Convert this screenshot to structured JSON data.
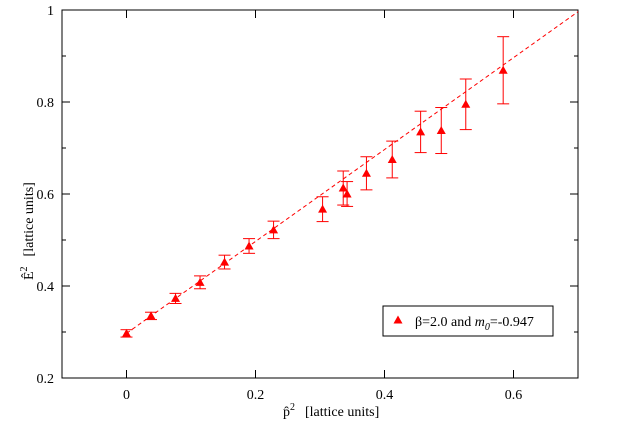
{
  "chart_data": {
    "type": "scatter",
    "xlim": [
      -0.1,
      0.7
    ],
    "ylim": [
      0.2,
      1.0
    ],
    "xticks": [
      0,
      0.2,
      0.4,
      0.6
    ],
    "yticks": [
      0.2,
      0.4,
      0.6,
      0.8,
      1.0
    ],
    "xtick_labels": [
      "0",
      "0.2",
      "0.4",
      "0.6"
    ],
    "ytick_labels": [
      "0.2",
      "0.4",
      "0.6",
      "0.8",
      "1"
    ],
    "xlabel_symbol": "p̂",
    "xlabel_sup": "2",
    "xlabel_units": "[lattice units]",
    "ylabel_symbol": "Ê",
    "ylabel_sup": "2",
    "ylabel_units": "[lattice units]",
    "grid": false,
    "legend_position": "bottom-right",
    "series": [
      {
        "name": "β=2.0 and m0=-0.947",
        "name_parts": {
          "pre": "β=2.0 and ",
          "var": "m",
          "sub": "0",
          "post": "=-0.947"
        },
        "color": "#ff0000",
        "marker": "triangle",
        "points": [
          {
            "x": 0.0,
            "y": 0.297,
            "err": 0.008
          },
          {
            "x": 0.038,
            "y": 0.335,
            "err": 0.008
          },
          {
            "x": 0.076,
            "y": 0.373,
            "err": 0.011
          },
          {
            "x": 0.114,
            "y": 0.408,
            "err": 0.014
          },
          {
            "x": 0.152,
            "y": 0.452,
            "err": 0.015
          },
          {
            "x": 0.19,
            "y": 0.487,
            "err": 0.016
          },
          {
            "x": 0.228,
            "y": 0.522,
            "err": 0.019
          },
          {
            "x": 0.304,
            "y": 0.567,
            "err": 0.027
          },
          {
            "x": 0.336,
            "y": 0.613,
            "err": 0.037
          },
          {
            "x": 0.342,
            "y": 0.6,
            "err": 0.027
          },
          {
            "x": 0.372,
            "y": 0.645,
            "err": 0.036
          },
          {
            "x": 0.412,
            "y": 0.675,
            "err": 0.04
          },
          {
            "x": 0.456,
            "y": 0.735,
            "err": 0.045
          },
          {
            "x": 0.488,
            "y": 0.738,
            "err": 0.05
          },
          {
            "x": 0.526,
            "y": 0.795,
            "err": 0.055
          },
          {
            "x": 0.584,
            "y": 0.869,
            "err": 0.073
          }
        ]
      }
    ],
    "fit_line": {
      "intercept": 0.297,
      "slope": 0.999,
      "color": "#ff0000",
      "style": "dashed"
    }
  }
}
